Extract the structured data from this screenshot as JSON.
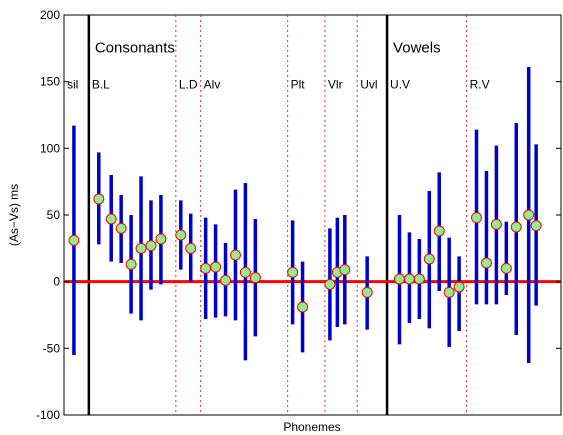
{
  "chart_data": {
    "type": "errorbar",
    "title": "",
    "xlabel": "Phonemes",
    "ylabel": "(As−Vs) ms",
    "ylim": [
      -100,
      200
    ],
    "yticks": [
      -100,
      -50,
      0,
      50,
      100,
      150,
      200
    ],
    "reference_line": {
      "y": 0,
      "color": "#ff0000"
    },
    "colors": {
      "errorbar": "#0000cc",
      "marker_fill": "#90ee90",
      "marker_edge": "#ff0000"
    },
    "sections": [
      {
        "label": "Consonants",
        "boundary_x": 0.05
      },
      {
        "label": "Vowels",
        "boundary_x": 0.65
      }
    ],
    "groups": [
      {
        "label": "sil",
        "x_start": 0.0
      },
      {
        "label": "B.L",
        "x_start": 0.05
      },
      {
        "label": "L.D",
        "x_start": 0.225
      },
      {
        "label": "Alv",
        "x_start": 0.275
      },
      {
        "label": "Plt",
        "x_start": 0.45
      },
      {
        "label": "Vlr",
        "x_start": 0.525
      },
      {
        "label": "Uvl",
        "x_start": 0.59
      },
      {
        "label": "U.V",
        "x_start": 0.65
      },
      {
        "label": "R.V",
        "x_start": 0.81
      }
    ],
    "points": [
      {
        "x": 0.02,
        "y": 31,
        "low": -55,
        "high": 117
      },
      {
        "x": 0.07,
        "y": 62,
        "low": 28,
        "high": 97
      },
      {
        "x": 0.095,
        "y": 47,
        "low": 15,
        "high": 80
      },
      {
        "x": 0.115,
        "y": 40,
        "low": 14,
        "high": 65
      },
      {
        "x": 0.135,
        "y": 13,
        "low": -24,
        "high": 50
      },
      {
        "x": 0.155,
        "y": 25,
        "low": -29,
        "high": 79
      },
      {
        "x": 0.175,
        "y": 27,
        "low": -6,
        "high": 61
      },
      {
        "x": 0.195,
        "y": 32,
        "low": -2,
        "high": 65
      },
      {
        "x": 0.235,
        "y": 35,
        "low": 9,
        "high": 61
      },
      {
        "x": 0.255,
        "y": 25,
        "low": 0,
        "high": 51
      },
      {
        "x": 0.285,
        "y": 10,
        "low": -28,
        "high": 48
      },
      {
        "x": 0.305,
        "y": 11,
        "low": -27,
        "high": 43
      },
      {
        "x": 0.325,
        "y": 1,
        "low": -26,
        "high": 29
      },
      {
        "x": 0.345,
        "y": 20,
        "low": -29,
        "high": 69
      },
      {
        "x": 0.365,
        "y": 7,
        "low": -59,
        "high": 74
      },
      {
        "x": 0.385,
        "y": 3,
        "low": -41,
        "high": 47
      },
      {
        "x": 0.46,
        "y": 7,
        "low": -32,
        "high": 46
      },
      {
        "x": 0.48,
        "y": -19,
        "low": -53,
        "high": 15
      },
      {
        "x": 0.535,
        "y": -2,
        "low": -44,
        "high": 40
      },
      {
        "x": 0.55,
        "y": 7,
        "low": -34,
        "high": 48
      },
      {
        "x": 0.565,
        "y": 9,
        "low": -32,
        "high": 50
      },
      {
        "x": 0.61,
        "y": -8,
        "low": -36,
        "high": 19
      },
      {
        "x": 0.675,
        "y": 2,
        "low": -47,
        "high": 50
      },
      {
        "x": 0.695,
        "y": 2,
        "low": -31,
        "high": 37
      },
      {
        "x": 0.715,
        "y": 2,
        "low": -28,
        "high": 32
      },
      {
        "x": 0.735,
        "y": 17,
        "low": -35,
        "high": 68
      },
      {
        "x": 0.755,
        "y": 38,
        "low": -7,
        "high": 82
      },
      {
        "x": 0.775,
        "y": -8,
        "low": -49,
        "high": 33
      },
      {
        "x": 0.795,
        "y": -4,
        "low": -37,
        "high": 19
      },
      {
        "x": 0.83,
        "y": 48,
        "low": -17,
        "high": 114
      },
      {
        "x": 0.85,
        "y": 14,
        "low": -17,
        "high": 83
      },
      {
        "x": 0.87,
        "y": 43,
        "low": -17,
        "high": 102
      },
      {
        "x": 0.89,
        "y": 10,
        "low": -10,
        "high": 45
      },
      {
        "x": 0.91,
        "y": 41,
        "low": -40,
        "high": 119
      },
      {
        "x": 0.935,
        "y": 50,
        "low": -61,
        "high": 161
      },
      {
        "x": 0.95,
        "y": 42,
        "low": -18,
        "high": 103
      }
    ]
  }
}
